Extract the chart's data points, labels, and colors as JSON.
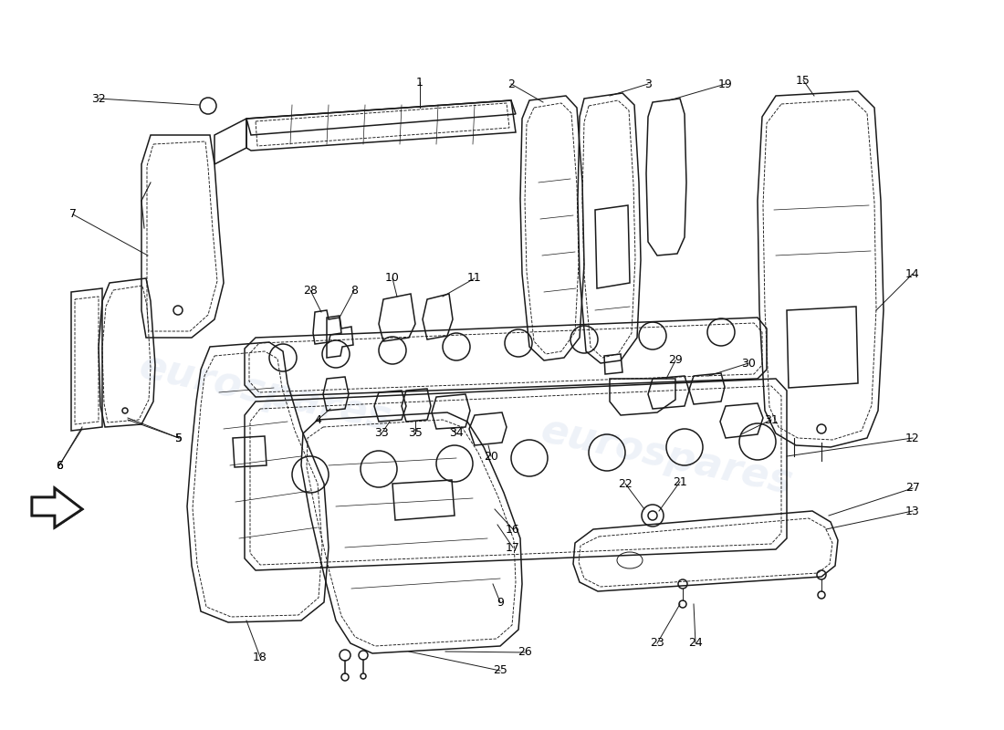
{
  "background_color": "#ffffff",
  "watermark_text": "eurospares",
  "watermark_color": "#c8d4e8",
  "watermark_alpha": 0.3,
  "line_color": "#1a1a1a",
  "text_color": "#000000",
  "font_size": 9.0
}
